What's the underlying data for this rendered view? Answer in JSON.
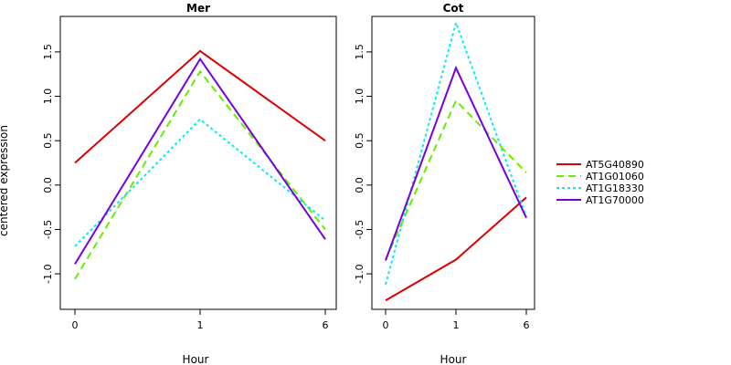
{
  "chart_data": {
    "type": "line",
    "ylabel": "centered expression",
    "legend": {
      "position": "right",
      "entries": [
        {
          "name": "AT5G40890",
          "color": "#dd0000",
          "dash": "solid"
        },
        {
          "name": "AT1G01060",
          "color": "#66ee00",
          "dash": "dashed"
        },
        {
          "name": "AT1G18330",
          "color": "#00eeee",
          "dash": "dotted"
        },
        {
          "name": "AT1G70000",
          "color": "#7700dd",
          "dash": "solid"
        }
      ]
    },
    "panels": [
      {
        "title": "Mer",
        "xlabel": "Hour",
        "categories": [
          "0",
          "1",
          "6"
        ],
        "ylim": [
          -1.4,
          1.9
        ],
        "yticks": [
          -1.0,
          -0.5,
          0.0,
          0.5,
          1.0,
          1.5
        ],
        "series": [
          {
            "name": "AT5G40890",
            "values": [
              0.25,
              1.51,
              0.5
            ]
          },
          {
            "name": "AT1G01060",
            "values": [
              -1.06,
              1.28,
              -0.5
            ]
          },
          {
            "name": "AT1G18330",
            "values": [
              -0.69,
              0.74,
              -0.4
            ]
          },
          {
            "name": "AT1G70000",
            "values": [
              -0.89,
              1.42,
              -0.61
            ]
          }
        ]
      },
      {
        "title": "Cot",
        "xlabel": "Hour",
        "categories": [
          "0",
          "1",
          "6"
        ],
        "ylim": [
          -1.4,
          1.9
        ],
        "yticks": [
          -1.0,
          -0.5,
          0.0,
          0.5,
          1.0,
          1.5
        ],
        "series": [
          {
            "name": "AT5G40890",
            "values": [
              -1.3,
              -0.84,
              -0.14
            ]
          },
          {
            "name": "AT1G01060",
            "values": [
              -0.84,
              0.95,
              0.14
            ]
          },
          {
            "name": "AT1G18330",
            "values": [
              -1.12,
              1.83,
              -0.36
            ]
          },
          {
            "name": "AT1G70000",
            "values": [
              -0.85,
              1.32,
              -0.37
            ]
          }
        ]
      }
    ]
  }
}
